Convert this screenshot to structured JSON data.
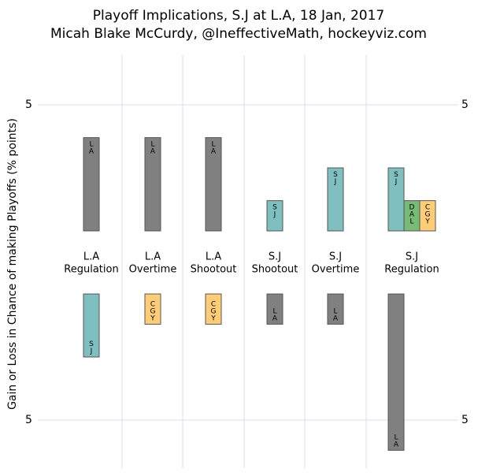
{
  "chart_data": {
    "type": "bar",
    "title": "Playoff Implications, S.J at L.A, 18 Jan, 2017",
    "subtitle": "Micah Blake McCurdy, @IneffectiveMath, hockeyviz.com",
    "y_label": "Gain or Loss in Chance of making Playoffs (% points)",
    "yticks": [
      {
        "value": 5,
        "label": "5"
      },
      {
        "value": -5,
        "label": "5"
      }
    ],
    "grid": true,
    "categories": [
      {
        "team": "L.A",
        "result": "Regulation",
        "gains": [
          {
            "label": "LA",
            "value": 3.7,
            "color": "#808080"
          }
        ],
        "losses": [
          {
            "label": "SJ",
            "value": -2.5,
            "color": "#7fbfbf"
          }
        ]
      },
      {
        "team": "L.A",
        "result": "Overtime",
        "gains": [
          {
            "label": "LA",
            "value": 3.7,
            "color": "#808080"
          }
        ],
        "losses": [
          {
            "label": "CGY",
            "value": -1.2,
            "color": "#ffcc77"
          }
        ]
      },
      {
        "team": "L.A",
        "result": "Shootout",
        "gains": [
          {
            "label": "LA",
            "value": 3.7,
            "color": "#808080"
          }
        ],
        "losses": [
          {
            "label": "CGY",
            "value": -1.2,
            "color": "#ffcc77"
          }
        ]
      },
      {
        "team": "S.J",
        "result": "Shootout",
        "gains": [
          {
            "label": "SJ",
            "value": 1.2,
            "color": "#7fbfbf"
          }
        ],
        "losses": [
          {
            "label": "LA",
            "value": -1.2,
            "color": "#808080"
          }
        ]
      },
      {
        "team": "S.J",
        "result": "Overtime",
        "gains": [
          {
            "label": "SJ",
            "value": 2.5,
            "color": "#7fbfbf"
          }
        ],
        "losses": [
          {
            "label": "LA",
            "value": -1.2,
            "color": "#808080"
          }
        ]
      },
      {
        "team": "S.J",
        "result": "Regulation",
        "gains": [
          {
            "label": "SJ",
            "value": 2.5,
            "color": "#7fbfbf"
          },
          {
            "label": "DAL",
            "value": 1.2,
            "color": "#77bb77"
          },
          {
            "label": "CGY",
            "value": 1.2,
            "color": "#ffcc77"
          }
        ],
        "losses": [
          {
            "label": "LA",
            "value": -6.2,
            "color": "#808080"
          }
        ]
      }
    ]
  }
}
